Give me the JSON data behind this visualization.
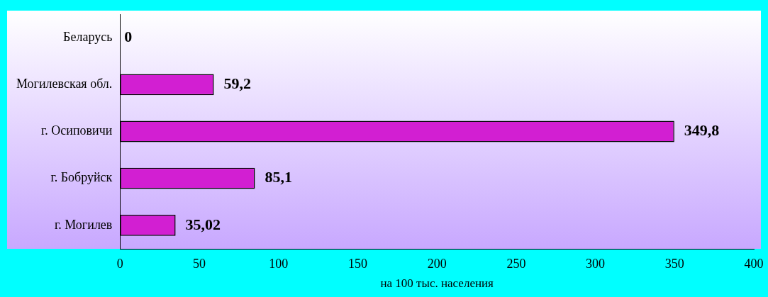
{
  "chart_data": {
    "type": "bar",
    "orientation": "horizontal",
    "xlabel": "на 100 тыс. населения",
    "categories": [
      "Беларусь",
      "Могилевская обл.",
      "г. Осиповичи",
      "г. Бобруйск",
      "г. Могилев"
    ],
    "values": [
      0,
      59.2,
      349.8,
      85.1,
      35.02
    ],
    "color": "#d21fd2",
    "value_labels": [
      "0",
      "59,2",
      "349,8",
      "85,1",
      "35,02"
    ],
    "xlim": [
      0,
      400
    ],
    "xticks": [
      0,
      50,
      100,
      150,
      200,
      250,
      300,
      350,
      400
    ],
    "grid": false,
    "legend": false
  }
}
